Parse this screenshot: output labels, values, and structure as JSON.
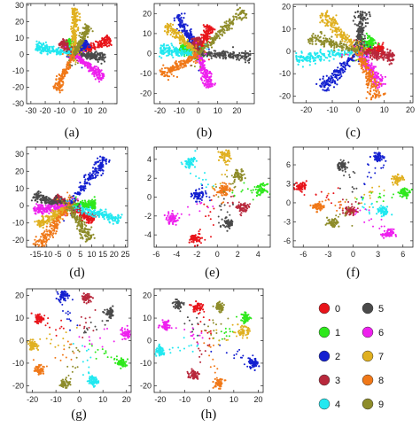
{
  "figure": {
    "legend": {
      "entries": [
        {
          "label": "0",
          "color": "#e8141a"
        },
        {
          "label": "1",
          "color": "#2ee81c"
        },
        {
          "label": "2",
          "color": "#1420d0"
        },
        {
          "label": "3",
          "color": "#b8283c"
        },
        {
          "label": "4",
          "color": "#22e8f0"
        },
        {
          "label": "5",
          "color": "#4a4a4a"
        },
        {
          "label": "6",
          "color": "#ee20ee"
        },
        {
          "label": "7",
          "color": "#e0b020"
        },
        {
          "label": "8",
          "color": "#f07818"
        },
        {
          "label": "9",
          "color": "#8e8c2a"
        }
      ]
    }
  },
  "chart_data": [
    {
      "type": "scatter",
      "caption": "(a)",
      "layout": "star",
      "xlim": [
        -33,
        30
      ],
      "ylim": [
        -30,
        31
      ],
      "xticks": [
        -30,
        -20,
        -10,
        0,
        10,
        20
      ],
      "yticks": [
        -30,
        -20,
        -10,
        0,
        10,
        20,
        30
      ],
      "angles": {
        "0": 20,
        "1": 120,
        "2": 40,
        "3": 140,
        "4": 170,
        "5": -5,
        "6": -35,
        "7": 88,
        "8": -120,
        "9": 58
      },
      "lengths": {
        "0": 27,
        "1": 10,
        "2": 12,
        "3": 12,
        "4": 27,
        "5": 22,
        "6": 25,
        "7": 28,
        "8": 25,
        "9": 20
      },
      "scatter": 1.6
    },
    {
      "type": "scatter",
      "caption": "(b)",
      "layout": "star",
      "xlim": [
        -23,
        29
      ],
      "ylim": [
        -25,
        25
      ],
      "xticks": [
        -20,
        -10,
        0,
        10,
        20
      ],
      "yticks": [
        -20,
        -10,
        0,
        10,
        20
      ],
      "angles": {
        "0": 65,
        "1": 160,
        "2": 120,
        "3": 100,
        "4": 175,
        "5": -3,
        "6": -70,
        "7": 140,
        "8": -150,
        "9": 42
      },
      "lengths": {
        "0": 15,
        "1": 10,
        "2": 22,
        "3": 8,
        "4": 20,
        "5": 27,
        "6": 18,
        "7": 22,
        "8": 22,
        "9": 32
      },
      "scatter": 1.5
    },
    {
      "type": "scatter",
      "caption": "(c)",
      "layout": "star",
      "xlim": [
        -25,
        21
      ],
      "ylim": [
        -23,
        21
      ],
      "xticks": [
        -20,
        -10,
        0,
        10,
        20
      ],
      "yticks": [
        -20,
        -10,
        0,
        10,
        20
      ],
      "angles": {
        "0": 5,
        "1": 45,
        "2": -130,
        "3": -10,
        "4": -172,
        "5": 85,
        "6": -60,
        "7": 130,
        "8": -70,
        "9": 160
      },
      "lengths": {
        "0": 10,
        "1": 8,
        "2": 22,
        "3": 14,
        "4": 24,
        "5": 18,
        "6": 18,
        "7": 22,
        "8": 22,
        "9": 20
      },
      "scatter": 1.5
    },
    {
      "type": "scatter",
      "caption": "(d)",
      "layout": "star",
      "xlim": [
        -19,
        26
      ],
      "ylim": [
        -24,
        34
      ],
      "xticks": [
        -15,
        -10,
        -5,
        0,
        5,
        10,
        15,
        20,
        25
      ],
      "yticks": [
        -20,
        -10,
        0,
        10,
        20,
        30
      ],
      "angles": {
        "0": -40,
        "1": 5,
        "2": 60,
        "3": 145,
        "4": -20,
        "5": 160,
        "6": -170,
        "7": -140,
        "8": -120,
        "9": -65
      },
      "lengths": {
        "0": 14,
        "1": 12,
        "2": 32,
        "3": 8,
        "4": 24,
        "5": 17,
        "6": 16,
        "7": 18,
        "8": 28,
        "9": 22
      },
      "scatter": 1.6
    },
    {
      "type": "scatter",
      "caption": "(e)",
      "layout": "clusters",
      "xlim": [
        -6.2,
        5.2
      ],
      "ylim": [
        -5.3,
        5.3
      ],
      "xticks": [
        -6,
        -4,
        -2,
        0,
        2,
        4
      ],
      "yticks": [
        -4,
        -2,
        0,
        2,
        4
      ],
      "centers": {
        "0": [
          -2.1,
          -4.4
        ],
        "1": [
          4.3,
          0.8
        ],
        "2": [
          -1.9,
          0.2
        ],
        "3": [
          2.5,
          -1.2
        ],
        "4": [
          -2.7,
          3.7
        ],
        "5": [
          1.1,
          -2.8
        ],
        "6": [
          -4.5,
          -2.3
        ],
        "7": [
          0.7,
          4.4
        ],
        "8": [
          0.6,
          0.8
        ],
        "9": [
          2.1,
          2.4
        ]
      },
      "spread": 0.28
    },
    {
      "type": "scatter",
      "caption": "(f)",
      "layout": "clusters",
      "xlim": [
        -7.2,
        7.2
      ],
      "ylim": [
        -7.0,
        8.8
      ],
      "xticks": [
        -6,
        -3,
        0,
        3,
        6
      ],
      "yticks": [
        -6,
        -3,
        0,
        3,
        6
      ],
      "centers": {
        "0": [
          -6.3,
          2.6
        ],
        "1": [
          6.2,
          1.6
        ],
        "2": [
          3.1,
          7.2
        ],
        "3": [
          -0.4,
          -1.3
        ],
        "4": [
          3.6,
          -1.4
        ],
        "5": [
          -1.4,
          5.9
        ],
        "6": [
          4.2,
          -4.9
        ],
        "7": [
          5.4,
          3.7
        ],
        "8": [
          -4.2,
          -0.6
        ],
        "9": [
          -2.4,
          -3.1
        ]
      },
      "spread": 0.35
    },
    {
      "type": "scatter",
      "caption": "(g)",
      "layout": "clusters",
      "xlim": [
        -22.5,
        22
      ],
      "ylim": [
        -23,
        23
      ],
      "xticks": [
        -20,
        -10,
        0,
        10,
        20
      ],
      "yticks": [
        -20,
        -10,
        0,
        10,
        20
      ],
      "centers": {
        "0": [
          -17,
          10
        ],
        "1": [
          18,
          -10
        ],
        "2": [
          -7,
          20
        ],
        "3": [
          3,
          19
        ],
        "4": [
          6,
          -18
        ],
        "5": [
          13,
          12
        ],
        "6": [
          20,
          3
        ],
        "7": [
          -20,
          -2
        ],
        "8": [
          -17,
          -13
        ],
        "9": [
          -6,
          -19
        ]
      },
      "spread": 1.0
    },
    {
      "type": "scatter",
      "caption": "(h)",
      "layout": "clusters",
      "xlim": [
        -22.5,
        22
      ],
      "ylim": [
        -23,
        23
      ],
      "xticks": [
        -20,
        -10,
        0,
        10,
        20
      ],
      "yticks": [
        -20,
        -10,
        0,
        10,
        20
      ],
      "centers": {
        "0": [
          -5,
          15
        ],
        "1": [
          15,
          10
        ],
        "2": [
          18,
          -10
        ],
        "3": [
          -6,
          -15
        ],
        "4": [
          -20,
          -5
        ],
        "5": [
          -13,
          16
        ],
        "6": [
          -18,
          7
        ],
        "7": [
          14,
          4
        ],
        "8": [
          4,
          -19
        ],
        "9": [
          4,
          15
        ]
      },
      "spread": 1.0
    }
  ]
}
